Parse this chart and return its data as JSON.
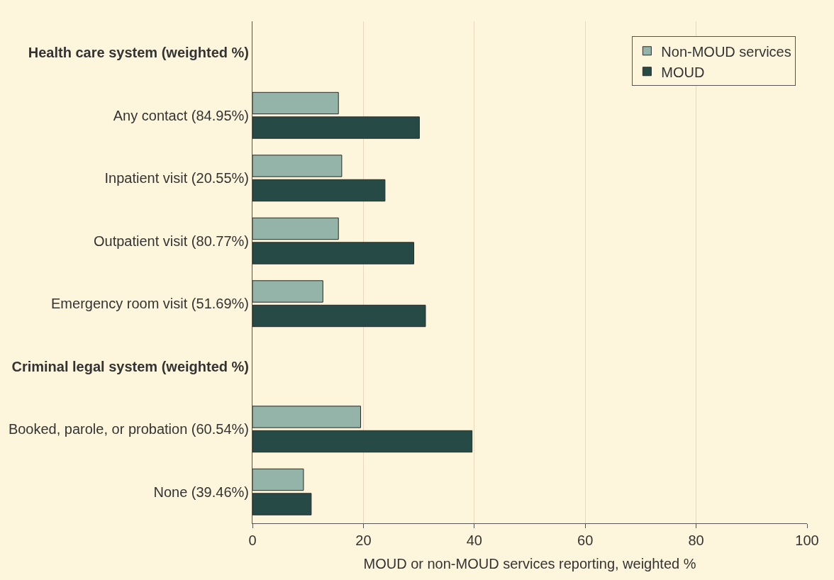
{
  "chart_data": {
    "type": "bar",
    "orientation": "horizontal",
    "xlabel": "MOUD or non-MOUD services reporting, weighted %",
    "categories": [
      "Health care system (weighted %)",
      "Any contact (84.95%)",
      "Inpatient visit (20.55%)",
      "Outpatient visit (80.77%)",
      "Emergency room visit (51.69%)",
      "Criminal legal system (weighted %)",
      "Booked, parole, or probation (60.54%)",
      "None (39.46%)"
    ],
    "series": [
      {
        "name": "Non-MOUD services",
        "color": "#94b3a9",
        "values": [
          null,
          15.5,
          16.1,
          15.5,
          12.7,
          null,
          19.5,
          9.2
        ]
      },
      {
        "name": "MOUD",
        "color": "#264b47",
        "values": [
          null,
          30.1,
          23.9,
          29.1,
          31.2,
          null,
          39.6,
          10.6
        ]
      }
    ],
    "xlim": [
      0,
      100
    ],
    "xticks": [
      0,
      20,
      40,
      60,
      80,
      100
    ],
    "grid": "x",
    "legend": "top right"
  }
}
